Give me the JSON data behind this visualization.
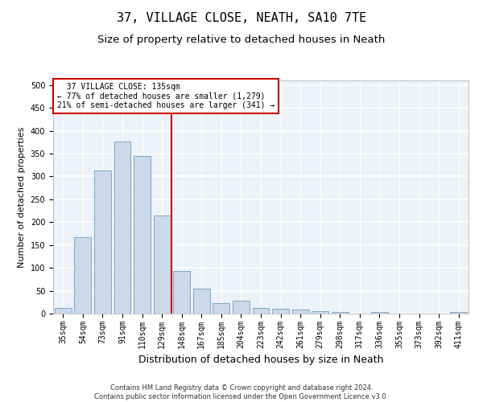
{
  "title": "37, VILLAGE CLOSE, NEATH, SA10 7TE",
  "subtitle": "Size of property relative to detached houses in Neath",
  "xlabel": "Distribution of detached houses by size in Neath",
  "ylabel": "Number of detached properties",
  "categories": [
    "35sqm",
    "54sqm",
    "73sqm",
    "91sqm",
    "110sqm",
    "129sqm",
    "148sqm",
    "167sqm",
    "185sqm",
    "204sqm",
    "223sqm",
    "242sqm",
    "261sqm",
    "279sqm",
    "298sqm",
    "317sqm",
    "336sqm",
    "355sqm",
    "373sqm",
    "392sqm",
    "411sqm"
  ],
  "values": [
    13,
    167,
    313,
    377,
    345,
    215,
    93,
    55,
    23,
    28,
    13,
    10,
    8,
    5,
    3,
    0,
    3,
    0,
    0,
    0,
    3
  ],
  "bar_color": "#ccd9e8",
  "bar_edge_color": "#6a9ec0",
  "vline_pos": 6,
  "vline_color": "#cc0000",
  "annotation_text": "  37 VILLAGE CLOSE: 135sqm\n← 77% of detached houses are smaller (1,279)\n21% of semi-detached houses are larger (341) →",
  "annotation_box_color": "#ffffff",
  "annotation_box_edge": "#cc0000",
  "ylim": [
    0,
    510
  ],
  "yticks": [
    0,
    50,
    100,
    150,
    200,
    250,
    300,
    350,
    400,
    450,
    500
  ],
  "background_color": "#edf2f8",
  "grid_color": "#ffffff",
  "footer": "Contains HM Land Registry data © Crown copyright and database right 2024.\nContains public sector information licensed under the Open Government Licence v3.0.",
  "title_fontsize": 11,
  "subtitle_fontsize": 9.5,
  "xlabel_fontsize": 9,
  "ylabel_fontsize": 8,
  "tick_fontsize": 7,
  "footer_fontsize": 6
}
